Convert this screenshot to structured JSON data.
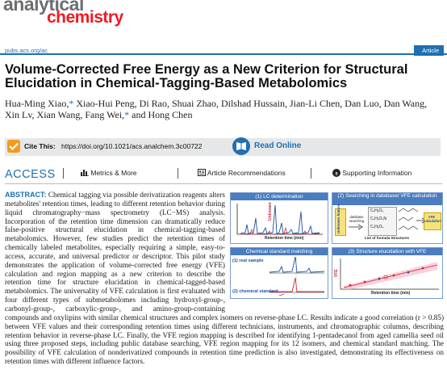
{
  "journal": {
    "logo_line1": "analytical",
    "logo_line2": "chemistry",
    "url": "pubs.acs.org/ac",
    "article_type": "Article"
  },
  "title": "Volume-Corrected Free Energy as a New Criterion for Structural Elucidation in Chemical-Tagging-Based Metabolomics",
  "authors": {
    "part1": "Hua-Ming Xiao,",
    "star1": "*",
    "part2": " Xiao-Hui Peng, Di Rao, Shuai Zhao, Dilshad Hussain, Jian-Li Chen, Dan Luo, Dan Wang, Xin Lv, Xian Wang, Fang Wei,",
    "star2": "*",
    "part3": " and Hong Chen"
  },
  "cite": {
    "label": "Cite This:",
    "doi": "https://doi.org/10.1021/acs.analchem.3c00722",
    "read_online": "Read Online"
  },
  "access": {
    "label": "ACCESS",
    "metrics": "Metrics & More",
    "recommendations": "Article Recommendations",
    "supporting": "Supporting Information"
  },
  "abstract": {
    "heading": "ABSTRACT:",
    "text": "Chemical tagging via possible derivatization reagents alters metabolites' retention times, leading to different retention behavior during liquid chromatography−mass spectrometry (LC−MS) analysis. Incorporation of the retention time dimension can dramatically reduce false-positive structural elucidation in chemical-tagging-based metabolomics. However, few studies predict the retention times of chemically labeled metabolites, especially requiring a simple, easy-to-access, accurate, and universal predictor or descriptor. This pilot study demonstrates the application of volume-corrected free energy (VFE) calculation and region mapping as a new criterion to describe the retention time for structure elucidation in chemical-tagged-based metabolomics. The universality of VFE calculation is first evaluated with four different types of submetabolomes including hydroxyl-group-, carbonyl-group-, carboxylic-group-, and amino-group-containing compounds and oxylipins with similar chemical structures and complex isomers on reverse-phase LC. Results indicate a good correlation (r > 0.85) between VFE values and their corresponding retention times using different technicians, instruments, and chromatographic columns, describing retention behavior in reverse-phase LC. Finally, the VFE region mapping is described for identifying 1-pentadecanol from aged camellia seed oil using three proposed steps, including public database searching, VFE region mapping for its 12 isomers, and chemical standard matching. The possibility of VFE calculation of nonderivatized compounds in retention time prediction is also investigated, demonstrating its effectiveness on retention times with different influence factors."
  },
  "toc": {
    "p1_title": "(1) LC determination",
    "p1_vlabel": "Unknown",
    "p1_xlabel": "Retention time (min)",
    "p2_title": "(2) Searching in database/ VFE calculation",
    "p2_unknown": "Unknown feature",
    "p2_db": "database searching",
    "p2_f1": "CₓHᵧO₂",
    "p2_f2": "CₓHᵧO₃N",
    "p2_f3": "CₓHᵧO₄",
    "p2_list": "List of formula Structures",
    "p2_vfe": "VFE calculation",
    "p3_title": "Chemical standard matching",
    "p3_real": "(1) real sample",
    "p3_std": "(2) chemical standard",
    "p4_title": "(3) Structure elucidation with VFE",
    "p4_ylabel": "VFE",
    "p4_xlabel": "Retention time (min)"
  },
  "colors": {
    "brand_blue": "#1f6fb2",
    "logo_red": "#ed1c24",
    "logo_gray": "#6d6e71",
    "cite_orange": "#f39b1c"
  }
}
